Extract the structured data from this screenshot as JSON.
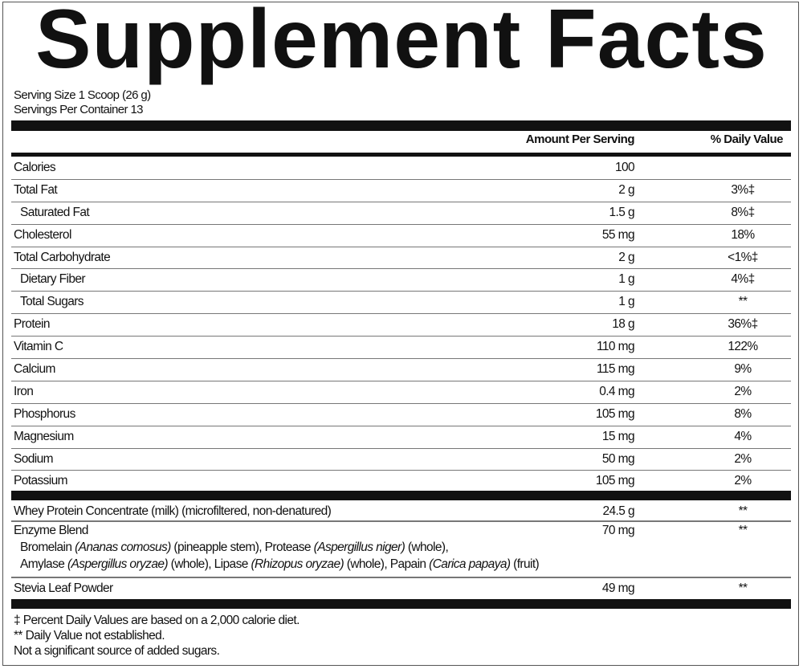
{
  "title": "Supplement Facts",
  "serving_size": "Serving Size 1 Scoop (26 g)",
  "servings_per_container": "Servings Per Container 13",
  "header": {
    "amount": "Amount Per Serving",
    "dv": "% Daily Value"
  },
  "nutrients": [
    {
      "name": "Calories",
      "amount": "100",
      "dv": ""
    },
    {
      "name": "Total Fat",
      "amount": "2 g",
      "dv": "3%‡"
    },
    {
      "name": "Saturated Fat",
      "amount": "1.5 g",
      "dv": "8%‡"
    },
    {
      "name": "Cholesterol",
      "amount": "55 mg",
      "dv": "18%"
    },
    {
      "name": "Total Carbohydrate",
      "amount": "2 g",
      "dv": "<1%‡"
    },
    {
      "name": "Dietary Fiber",
      "amount": "1 g",
      "dv": "4%‡"
    },
    {
      "name": "Total Sugars",
      "amount": "1 g",
      "dv": "**"
    },
    {
      "name": "Protein",
      "amount": "18 g",
      "dv": "36%‡"
    },
    {
      "name": "Vitamin C",
      "amount": "110 mg",
      "dv": "122%"
    },
    {
      "name": "Calcium",
      "amount": "115 mg",
      "dv": "9%"
    },
    {
      "name": "Iron",
      "amount": "0.4 mg",
      "dv": "2%"
    },
    {
      "name": "Phosphorus",
      "amount": "105 mg",
      "dv": "8%"
    },
    {
      "name": "Magnesium",
      "amount": "15 mg",
      "dv": "4%"
    },
    {
      "name": "Sodium",
      "amount": "50 mg",
      "dv": "2%"
    },
    {
      "name": "Potassium",
      "amount": "105 mg",
      "dv": "2%"
    }
  ],
  "ingredients": {
    "whey": {
      "name": "Whey Protein Concentrate (milk) (microfiltered, non-denatured)",
      "amount": "24.5 g",
      "dv": "**"
    },
    "enzyme": {
      "name": "Enzyme Blend",
      "amount": "70 mg",
      "dv": "**",
      "line1": [
        [
          "Bromelain ",
          false
        ],
        [
          "(Ananas comosus)",
          true
        ],
        [
          " (pineapple stem), Protease ",
          false
        ],
        [
          "(Aspergillus niger)",
          true
        ],
        [
          " (whole),",
          false
        ]
      ],
      "line2": [
        [
          "Amylase ",
          false
        ],
        [
          "(Aspergillus oryzae)",
          true
        ],
        [
          " (whole), Lipase ",
          false
        ],
        [
          "(Rhizopus oryzae)",
          true
        ],
        [
          " (whole), Papain ",
          false
        ],
        [
          "(Carica papaya)",
          true
        ],
        [
          " (fruit)",
          false
        ]
      ]
    },
    "stevia": {
      "name": "Stevia Leaf Powder",
      "amount": "49 mg",
      "dv": "**"
    }
  },
  "footnotes": [
    "‡  Percent Daily Values are based on a 2,000 calorie diet.",
    "**  Daily Value not established.",
    "Not a significant source of added sugars."
  ]
}
